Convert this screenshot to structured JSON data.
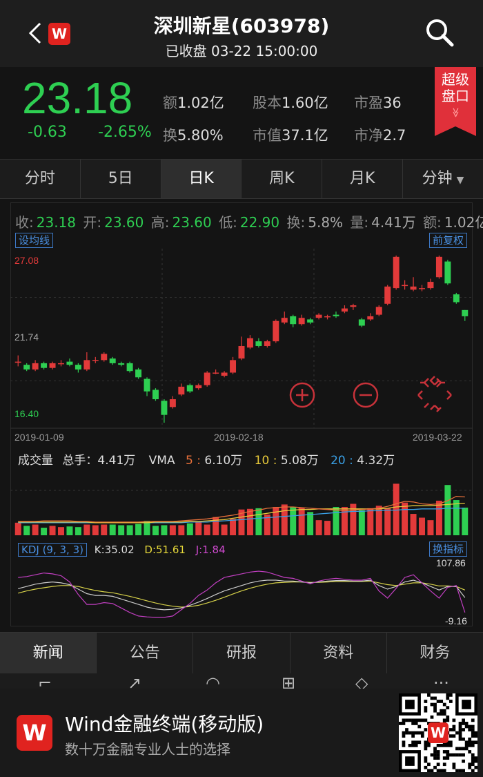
{
  "header": {
    "title": "深圳新星(603978)",
    "subtitle": "已收盘 03-22 15:00:00",
    "logo_letter": "W"
  },
  "quote": {
    "price": "23.18",
    "change": "-0.63",
    "change_pct": "-2.65%",
    "amount_label": "额",
    "amount": "1.02亿",
    "turnover_label": "换",
    "turnover": "5.80%",
    "shares_label": "股本",
    "shares": "1.60亿",
    "mktcap_label": "市值",
    "mktcap": "37.1亿",
    "pe_label": "市盈",
    "pe": "36",
    "pb_label": "市净",
    "pb": "2.7",
    "super_line1": "超级",
    "super_line2": "盘口",
    "super_chevron": "≫"
  },
  "tabs": [
    "分时",
    "5日",
    "日K",
    "周K",
    "月K",
    "分钟"
  ],
  "ohlc": {
    "close_label": "收:",
    "close": "23.18",
    "open_label": "开:",
    "open": "23.60",
    "high_label": "高:",
    "high": "23.60",
    "low_label": "低:",
    "low": "22.90",
    "turn_label": "换:",
    "turn": "5.8%",
    "vol_label": "量:",
    "vol": "4.41万",
    "amt_label": "额:",
    "amt": "1.02亿"
  },
  "buttons": {
    "ma_setting": "设均线",
    "adjust": "前复权",
    "switch_indicator": "换指标"
  },
  "volume": {
    "label": "成交量",
    "total_label": "总手：",
    "total": "4.41万",
    "vma_label": "VMA",
    "vma5_key": "5",
    "vma5": "6.10万",
    "vma10_key": "10",
    "vma10": "5.08万",
    "vma20_key": "20",
    "vma20": "4.32万"
  },
  "kdj": {
    "name": "KDJ (9, 3, 3)",
    "k_label": "K:",
    "k": "35.02",
    "d_label": "D:",
    "d": "51.61",
    "j_label": "J:",
    "j": "1.84"
  },
  "subtabs": [
    "新闻",
    "公告",
    "研报",
    "资料",
    "财务"
  ],
  "footer": {
    "logo_letter": "W",
    "title": "Wind金融终端(移动版)",
    "subtitle": "数十万金融专业人士的选择"
  },
  "colors": {
    "up": "#e23a3a",
    "down": "#2ecf52",
    "vma5": "#e8703a",
    "vma10": "#e6c83a",
    "vma20": "#3aa0e6",
    "k_line": "#cccccc",
    "d_line": "#d8d34a",
    "j_line": "#c23fc2",
    "accent": "#e0231f"
  },
  "chart_data": {
    "type": "candlestick",
    "x_labels": [
      "2019-01-09",
      "2019-02-18",
      "2019-03-22"
    ],
    "y_labels": [
      "27.08",
      "21.74",
      "16.40"
    ],
    "ylim": [
      16.4,
      27.08
    ],
    "candles": [
      {
        "o": 20.3,
        "c": 20.3,
        "h": 20.7,
        "l": 20.0
      },
      {
        "o": 20.1,
        "c": 19.8,
        "h": 20.2,
        "l": 19.7
      },
      {
        "o": 19.8,
        "c": 20.2,
        "h": 20.4,
        "l": 19.7
      },
      {
        "o": 20.2,
        "c": 19.9,
        "h": 20.3,
        "l": 19.8
      },
      {
        "o": 19.9,
        "c": 20.2,
        "h": 20.3,
        "l": 19.8
      },
      {
        "o": 20.2,
        "c": 20.2,
        "h": 20.4,
        "l": 20.0
      },
      {
        "o": 20.3,
        "c": 20.1,
        "h": 20.5,
        "l": 20.0
      },
      {
        "o": 20.1,
        "c": 19.8,
        "h": 20.2,
        "l": 19.6
      },
      {
        "o": 19.8,
        "c": 20.4,
        "h": 20.9,
        "l": 19.7
      },
      {
        "o": 20.4,
        "c": 20.4,
        "h": 20.6,
        "l": 20.2
      },
      {
        "o": 20.4,
        "c": 20.8,
        "h": 20.9,
        "l": 20.3
      },
      {
        "o": 20.5,
        "c": 20.2,
        "h": 20.6,
        "l": 20.1
      },
      {
        "o": 20.2,
        "c": 20.1,
        "h": 20.3,
        "l": 20.0
      },
      {
        "o": 20.2,
        "c": 19.7,
        "h": 20.3,
        "l": 19.6
      },
      {
        "o": 19.8,
        "c": 19.3,
        "h": 19.9,
        "l": 19.2
      },
      {
        "o": 19.2,
        "c": 18.4,
        "h": 19.3,
        "l": 18.1
      },
      {
        "o": 18.5,
        "c": 17.9,
        "h": 18.6,
        "l": 17.8
      },
      {
        "o": 17.8,
        "c": 16.9,
        "h": 17.9,
        "l": 16.4
      },
      {
        "o": 17.4,
        "c": 17.9,
        "h": 18.1,
        "l": 17.3
      },
      {
        "o": 18.2,
        "c": 18.7,
        "h": 18.9,
        "l": 18.1
      },
      {
        "o": 18.8,
        "c": 18.4,
        "h": 18.9,
        "l": 18.3
      },
      {
        "o": 18.6,
        "c": 18.8,
        "h": 18.9,
        "l": 18.5
      },
      {
        "o": 18.8,
        "c": 19.6,
        "h": 19.7,
        "l": 18.7
      },
      {
        "o": 19.6,
        "c": 19.6,
        "h": 19.8,
        "l": 19.5
      },
      {
        "o": 19.4,
        "c": 19.6,
        "h": 19.7,
        "l": 19.3
      },
      {
        "o": 19.6,
        "c": 20.4,
        "h": 20.6,
        "l": 19.5
      },
      {
        "o": 20.5,
        "c": 21.3,
        "h": 21.9,
        "l": 20.4
      },
      {
        "o": 21.2,
        "c": 21.8,
        "h": 22.0,
        "l": 21.1
      },
      {
        "o": 21.6,
        "c": 21.3,
        "h": 21.8,
        "l": 21.2
      },
      {
        "o": 21.3,
        "c": 21.6,
        "h": 21.7,
        "l": 21.2
      },
      {
        "o": 21.6,
        "c": 22.9,
        "h": 23.0,
        "l": 21.5
      },
      {
        "o": 22.8,
        "c": 23.1,
        "h": 23.5,
        "l": 22.7
      },
      {
        "o": 23.2,
        "c": 22.7,
        "h": 23.3,
        "l": 22.5
      },
      {
        "o": 22.7,
        "c": 23.1,
        "h": 23.3,
        "l": 22.6
      },
      {
        "o": 23.0,
        "c": 22.8,
        "h": 23.1,
        "l": 22.7
      },
      {
        "o": 23.1,
        "c": 23.3,
        "h": 23.4,
        "l": 23.0
      },
      {
        "o": 23.2,
        "c": 23.2,
        "h": 23.3,
        "l": 23.0
      },
      {
        "o": 23.3,
        "c": 23.2,
        "h": 23.5,
        "l": 23.1
      },
      {
        "o": 23.5,
        "c": 23.7,
        "h": 23.9,
        "l": 23.4
      },
      {
        "o": 23.8,
        "c": 23.9,
        "h": 24.0,
        "l": 23.6
      },
      {
        "o": 23.0,
        "c": 22.6,
        "h": 23.1,
        "l": 22.5
      },
      {
        "o": 23.0,
        "c": 23.2,
        "h": 23.4,
        "l": 22.9
      },
      {
        "o": 23.3,
        "c": 23.8,
        "h": 23.9,
        "l": 23.2
      },
      {
        "o": 24.0,
        "c": 25.1,
        "h": 25.2,
        "l": 23.9
      },
      {
        "o": 25.0,
        "c": 27.0,
        "h": 27.08,
        "l": 24.9
      },
      {
        "o": 25.2,
        "c": 25.2,
        "h": 25.5,
        "l": 24.9
      },
      {
        "o": 24.9,
        "c": 25.1,
        "h": 25.7,
        "l": 24.8
      },
      {
        "o": 25.0,
        "c": 25.0,
        "h": 25.2,
        "l": 24.8
      },
      {
        "o": 25.0,
        "c": 25.4,
        "h": 25.6,
        "l": 24.9
      },
      {
        "o": 25.7,
        "c": 27.0,
        "h": 27.08,
        "l": 25.6
      },
      {
        "o": 26.7,
        "c": 25.3,
        "h": 26.8,
        "l": 25.2
      },
      {
        "o": 24.6,
        "c": 24.1,
        "h": 24.7,
        "l": 24.0
      },
      {
        "o": 23.6,
        "c": 23.2,
        "h": 23.6,
        "l": 22.9
      }
    ],
    "volume_max": 10,
    "volumes": [
      2.0,
      1.5,
      1.7,
      1.2,
      1.5,
      1.3,
      1.4,
      1.3,
      1.7,
      1.6,
      1.7,
      1.7,
      1.6,
      1.6,
      1.8,
      2.3,
      1.5,
      1.6,
      1.6,
      1.6,
      1.9,
      2.2,
      1.7,
      2.9,
      1.7,
      2.6,
      4.1,
      4.2,
      4.3,
      3.3,
      4.5,
      4.9,
      4.5,
      4.4,
      3.7,
      2.4,
      2.3,
      4.5,
      4.5,
      5.0,
      4.0,
      4.3,
      4.7,
      4.3,
      8.2,
      5.2,
      3.4,
      2.8,
      2.4,
      5.5,
      8.0,
      5.6,
      4.4
    ],
    "vma5": [
      2.2,
      2.2,
      2.2,
      2.3,
      2.3,
      2.3,
      2.3,
      2.2,
      2.2,
      2.1,
      2.1,
      2.1,
      2.1,
      2.1,
      2.1,
      2.2,
      2.2,
      2.2,
      2.2,
      2.3,
      2.4,
      2.5,
      2.6,
      2.8,
      3.0,
      3.2,
      3.5,
      3.8,
      4.0,
      4.3,
      4.4,
      4.5,
      4.5,
      4.4,
      4.3,
      4.2,
      4.1,
      4.0,
      3.9,
      4.0,
      4.1,
      4.2,
      4.3,
      4.6,
      5.0,
      5.4,
      5.3,
      5.0,
      4.9,
      5.0,
      5.5,
      6.2,
      6.1
    ],
    "vma10": [
      2.1,
      2.1,
      2.1,
      2.1,
      2.1,
      2.1,
      2.1,
      2.1,
      2.1,
      2.0,
      2.0,
      2.0,
      2.0,
      2.0,
      2.0,
      2.0,
      2.1,
      2.1,
      2.1,
      2.1,
      2.2,
      2.2,
      2.3,
      2.4,
      2.5,
      2.7,
      2.9,
      3.1,
      3.3,
      3.5,
      3.7,
      3.9,
      4.0,
      4.1,
      4.1,
      4.2,
      4.2,
      4.2,
      4.2,
      4.2,
      4.2,
      4.2,
      4.2,
      4.3,
      4.5,
      4.6,
      4.7,
      4.7,
      4.7,
      4.8,
      4.9,
      5.0,
      5.1
    ],
    "vma20": [
      2.0,
      2.0,
      2.0,
      2.0,
      2.0,
      2.0,
      2.0,
      2.0,
      2.0,
      2.0,
      2.0,
      2.0,
      2.0,
      2.0,
      2.0,
      2.0,
      2.0,
      2.0,
      2.0,
      2.0,
      2.1,
      2.1,
      2.1,
      2.2,
      2.3,
      2.4,
      2.5,
      2.6,
      2.7,
      2.8,
      2.9,
      3.0,
      3.1,
      3.2,
      3.3,
      3.4,
      3.5,
      3.6,
      3.7,
      3.8,
      3.8,
      3.9,
      3.9,
      4.0,
      4.0,
      4.1,
      4.1,
      4.2,
      4.2,
      4.2,
      4.3,
      4.3,
      4.3
    ],
    "kdj_ylim": [
      -9.16,
      107.86
    ],
    "kdj_y_labels": [
      "107.86",
      "-9.16"
    ],
    "k": [
      55,
      60,
      65,
      68,
      70,
      68,
      64,
      54,
      44,
      40,
      40,
      38,
      32,
      26,
      20,
      14,
      10,
      8,
      9,
      12,
      18,
      25,
      33,
      42,
      50,
      56,
      62,
      68,
      72,
      74,
      74,
      72,
      72,
      70,
      68,
      70,
      72,
      73,
      73,
      72,
      72,
      74,
      62,
      54,
      60,
      70,
      74,
      68,
      60,
      52,
      60,
      60,
      35
    ],
    "d": [
      45,
      50,
      54,
      57,
      60,
      62,
      62,
      60,
      55,
      51,
      48,
      46,
      42,
      38,
      33,
      28,
      23,
      19,
      16,
      14,
      15,
      18,
      23,
      29,
      36,
      43,
      50,
      56,
      61,
      65,
      68,
      69,
      70,
      70,
      69,
      69,
      70,
      71,
      71,
      71,
      71,
      72,
      68,
      64,
      62,
      65,
      68,
      68,
      65,
      61,
      61,
      60,
      52
    ],
    "j": [
      80,
      82,
      86,
      90,
      88,
      84,
      70,
      42,
      20,
      20,
      24,
      22,
      12,
      2,
      -6,
      -8,
      -9,
      -9,
      -6,
      8,
      22,
      40,
      52,
      68,
      80,
      84,
      88,
      92,
      94,
      92,
      86,
      80,
      78,
      72,
      66,
      72,
      76,
      78,
      76,
      74,
      74,
      78,
      50,
      34,
      56,
      80,
      86,
      68,
      50,
      34,
      58,
      62,
      2
    ]
  }
}
